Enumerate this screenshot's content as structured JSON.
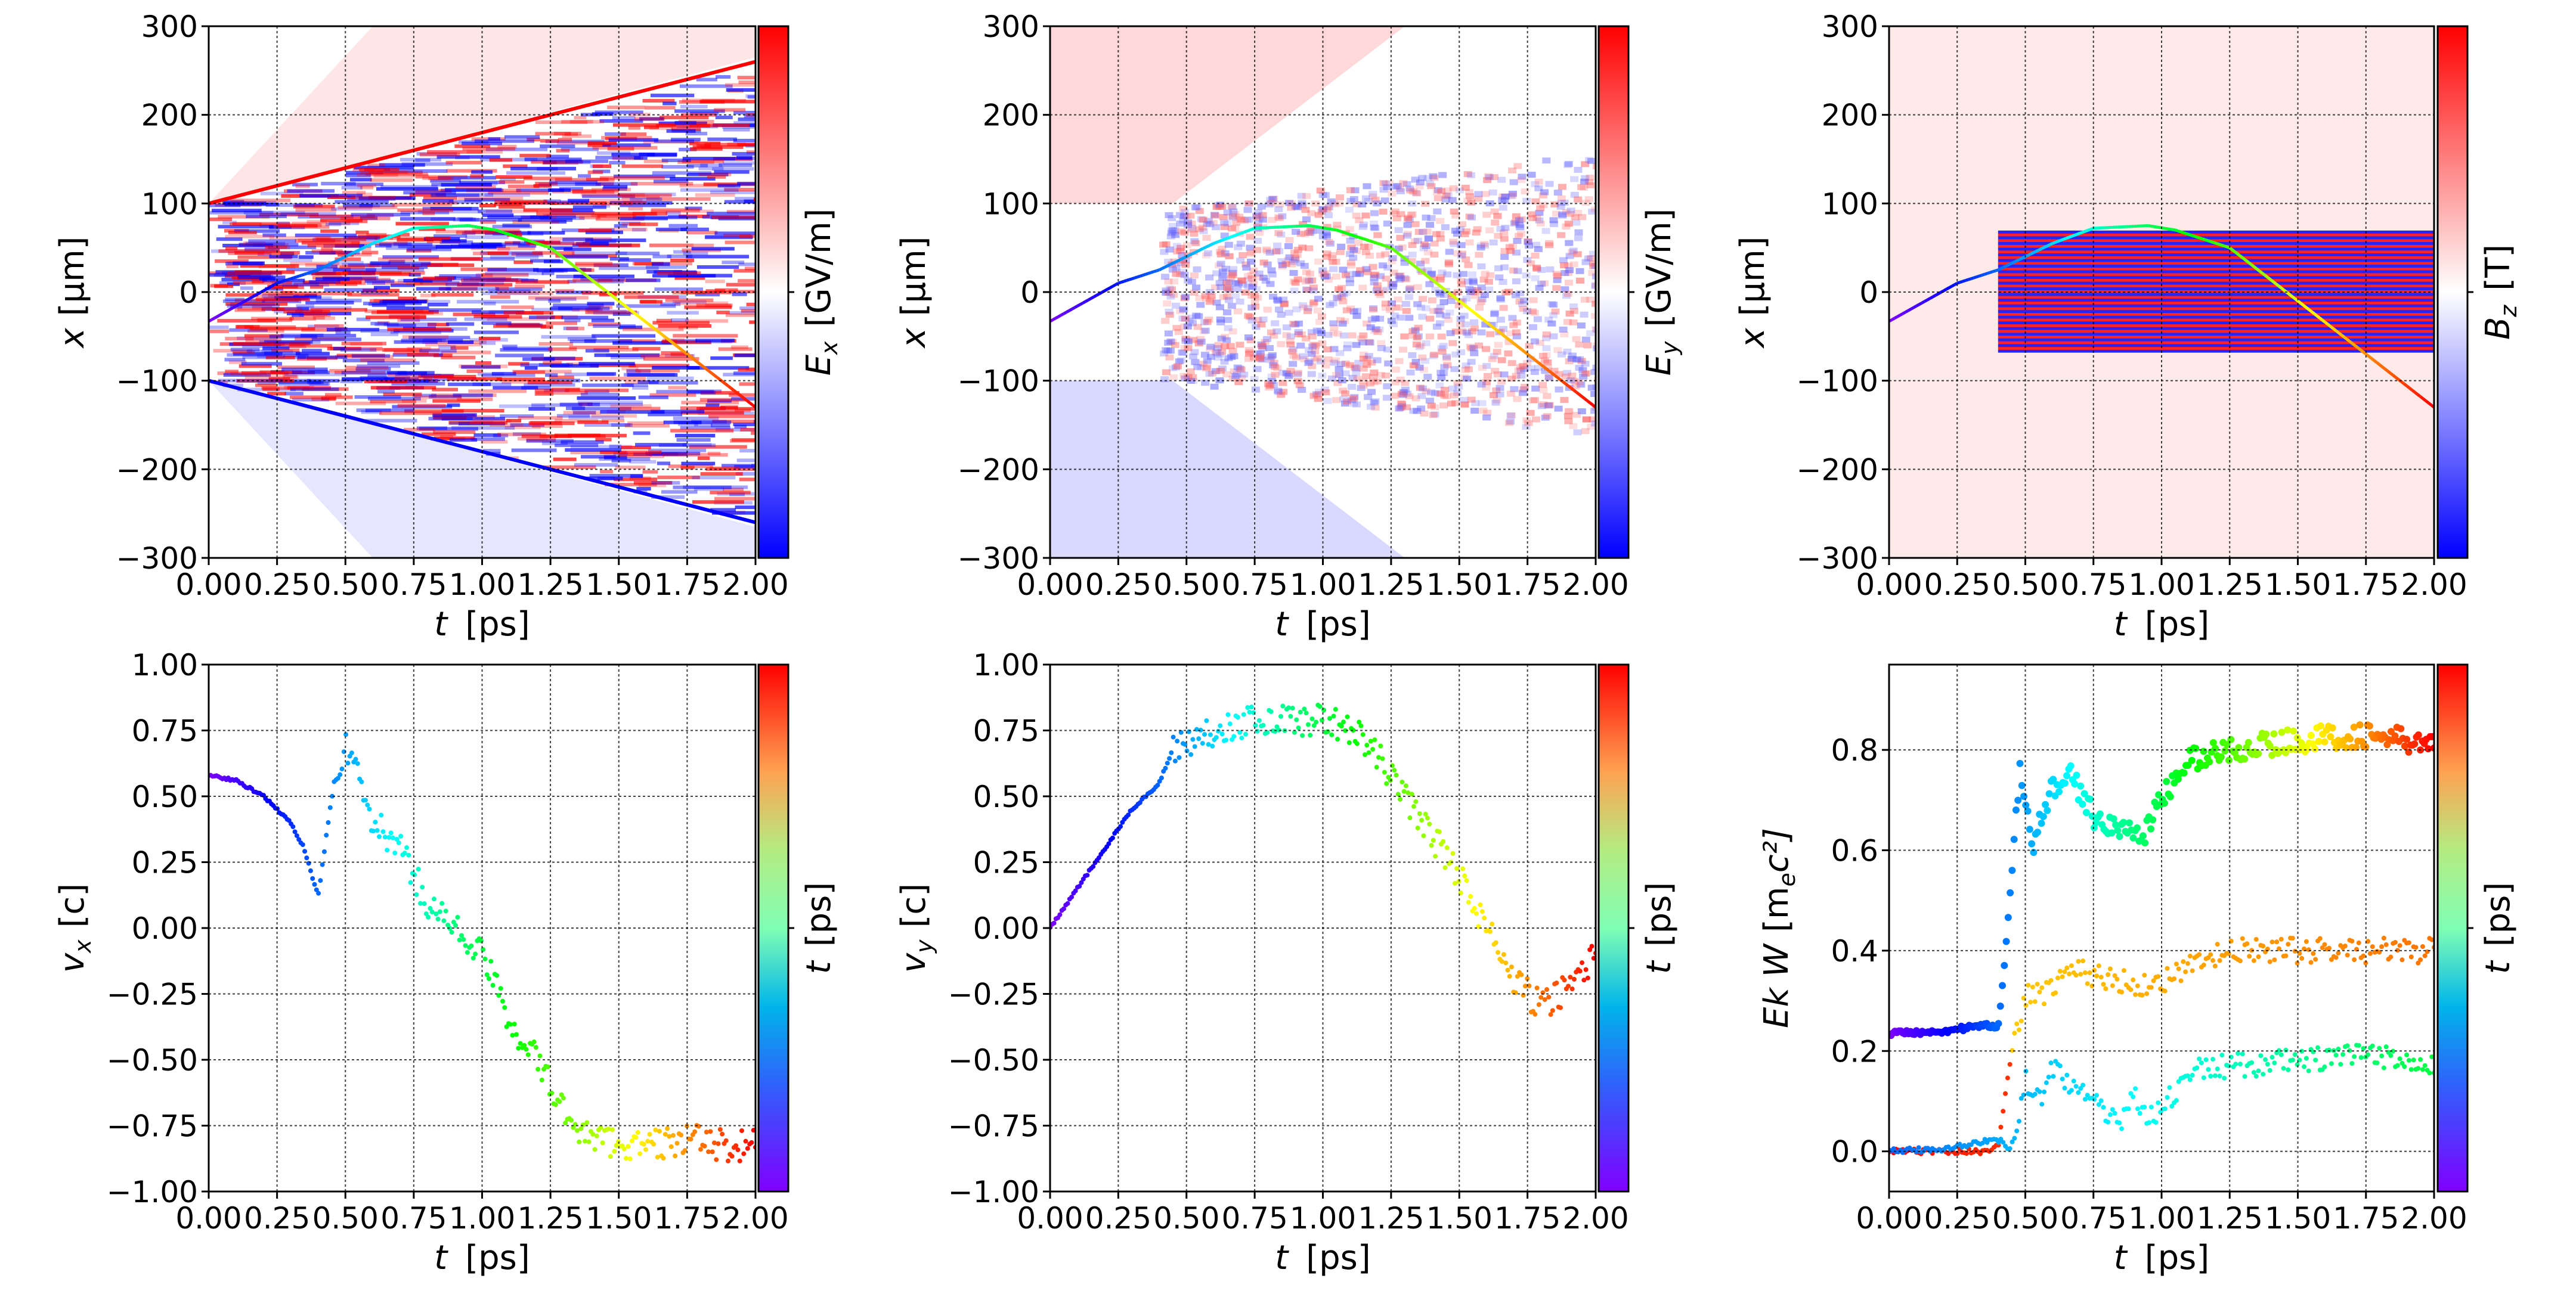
{
  "chart_data": [
    {
      "type": "heatmap",
      "panel": "top-left",
      "xlabel": {
        "var": "t",
        "unit": "[ps]"
      },
      "ylabel": {
        "var": "x",
        "unit": "[μm]"
      },
      "colorbar": {
        "var": "E",
        "sub": "x",
        "unit": "[GV/m]",
        "colormap": "bwr"
      },
      "xlim": [
        0,
        2
      ],
      "ylim": [
        -300,
        300
      ],
      "xticks": [
        "0.00",
        "0.25",
        "0.50",
        "0.75",
        "1.00",
        "1.25",
        "1.50",
        "1.75",
        "2.00"
      ],
      "yticks": [
        "−300",
        "−200",
        "−100",
        "0",
        "100",
        "200",
        "300"
      ],
      "grid": true,
      "trajectory": {
        "t": [
          0,
          0.25,
          0.4,
          0.5,
          0.6,
          0.75,
          0.95,
          1.05,
          1.25,
          1.5,
          1.75,
          2.0
        ],
        "x": [
          -33,
          10,
          25,
          40,
          55,
          72,
          75,
          70,
          50,
          -10,
          -70,
          -130
        ],
        "colormap": "rainbow"
      }
    },
    {
      "type": "heatmap",
      "panel": "top-middle",
      "xlabel": {
        "var": "t",
        "unit": "[ps]"
      },
      "ylabel": {
        "var": "x",
        "unit": "[μm]"
      },
      "colorbar": {
        "var": "E",
        "sub": "y",
        "unit": "[GV/m]",
        "colormap": "bwr"
      },
      "xlim": [
        0,
        2
      ],
      "ylim": [
        -300,
        300
      ],
      "xticks": [
        "0.00",
        "0.25",
        "0.50",
        "0.75",
        "1.00",
        "1.25",
        "1.50",
        "1.75",
        "2.00"
      ],
      "yticks": [
        "−300",
        "−200",
        "−100",
        "0",
        "100",
        "200",
        "300"
      ],
      "grid": true
    },
    {
      "type": "heatmap",
      "panel": "top-right",
      "xlabel": {
        "var": "t",
        "unit": "[ps]"
      },
      "ylabel": {
        "var": "x",
        "unit": "[μm]"
      },
      "colorbar": {
        "var": "B",
        "sub": "z",
        "unit": "[T]",
        "colormap": "bwr"
      },
      "xlim": [
        0,
        2
      ],
      "ylim": [
        -300,
        300
      ],
      "xticks": [
        "0.00",
        "0.25",
        "0.50",
        "0.75",
        "1.00",
        "1.25",
        "1.50",
        "1.75",
        "2.00"
      ],
      "yticks": [
        "−300",
        "−200",
        "−100",
        "0",
        "100",
        "200",
        "300"
      ],
      "grid": true
    },
    {
      "type": "scatter",
      "panel": "bottom-left",
      "xlabel": {
        "var": "t",
        "unit": "[ps]"
      },
      "ylabel": {
        "var": "v",
        "sub": "x",
        "unit": "[c]"
      },
      "colorbar": {
        "var": "t",
        "unit": "[ps]",
        "colormap": "rainbow"
      },
      "xlim": [
        0,
        2
      ],
      "ylim": [
        -1,
        1
      ],
      "xticks": [
        "0.00",
        "0.25",
        "0.50",
        "0.75",
        "1.00",
        "1.25",
        "1.50",
        "1.75",
        "2.00"
      ],
      "yticks": [
        "−1.00",
        "−0.75",
        "−0.50",
        "−0.25",
        "0.00",
        "0.25",
        "0.50",
        "0.75",
        "1.00"
      ],
      "grid": true,
      "series": [
        {
          "t": [
            0,
            0.1,
            0.2,
            0.3,
            0.35,
            0.4,
            0.45,
            0.5,
            0.6,
            0.7,
            0.8,
            0.9,
            1.0,
            1.1,
            1.2,
            1.3,
            1.4,
            1.6,
            1.75,
            1.9,
            2.0
          ],
          "y": [
            0.58,
            0.56,
            0.5,
            0.4,
            0.3,
            0.12,
            0.5,
            0.7,
            0.4,
            0.3,
            0.1,
            0.0,
            -0.1,
            -0.35,
            -0.5,
            -0.7,
            -0.8,
            -0.83,
            -0.8,
            -0.83,
            -0.82
          ]
        }
      ]
    },
    {
      "type": "scatter",
      "panel": "bottom-middle",
      "xlabel": {
        "var": "t",
        "unit": "[ps]"
      },
      "ylabel": {
        "var": "v",
        "sub": "y",
        "unit": "[c]"
      },
      "colorbar": {
        "var": "t",
        "unit": "[ps]",
        "colormap": "rainbow"
      },
      "xlim": [
        0,
        2
      ],
      "ylim": [
        -1,
        1
      ],
      "xticks": [
        "0.00",
        "0.25",
        "0.50",
        "0.75",
        "1.00",
        "1.25",
        "1.50",
        "1.75",
        "2.00"
      ],
      "yticks": [
        "−1.00",
        "−0.75",
        "−0.50",
        "−0.25",
        "0.00",
        "0.25",
        "0.50",
        "0.75",
        "1.00"
      ],
      "grid": true,
      "series": [
        {
          "t": [
            0,
            0.1,
            0.2,
            0.3,
            0.4,
            0.45,
            0.5,
            0.6,
            0.7,
            0.8,
            1.0,
            1.1,
            1.2,
            1.3,
            1.4,
            1.5,
            1.6,
            1.7,
            1.8,
            1.9,
            2.0
          ],
          "y": [
            0,
            0.15,
            0.3,
            0.45,
            0.55,
            0.68,
            0.7,
            0.75,
            0.78,
            0.79,
            0.79,
            0.76,
            0.65,
            0.5,
            0.35,
            0.2,
            0.0,
            -0.2,
            -0.3,
            -0.22,
            -0.1
          ]
        }
      ]
    },
    {
      "type": "scatter",
      "panel": "bottom-right",
      "xlabel": {
        "var": "t",
        "unit": "[ps]"
      },
      "ylabel": {
        "var": "Ek W",
        "unit": "[m",
        "sub": "e",
        "tail": "c²]"
      },
      "colorbar": {
        "var": "t",
        "unit": "[ps]",
        "colormap": "rainbow"
      },
      "xlim": [
        0,
        2
      ],
      "ylim": [
        -0.08,
        0.97
      ],
      "xticks": [
        "0.00",
        "0.25",
        "0.50",
        "0.75",
        "1.00",
        "1.25",
        "1.50",
        "1.75",
        "2.00"
      ],
      "yticks": [
        "0.0",
        "0.2",
        "0.4",
        "0.6",
        "0.8"
      ],
      "grid": true,
      "series": [
        {
          "t": [
            0,
            0.2,
            0.35,
            0.4,
            0.42,
            0.45,
            0.48,
            0.53,
            0.6,
            0.65,
            0.75,
            0.85,
            0.93,
            1.0,
            1.1,
            1.25,
            1.5,
            1.75,
            2.0
          ],
          "y": [
            0.235,
            0.24,
            0.25,
            0.25,
            0.35,
            0.55,
            0.75,
            0.62,
            0.72,
            0.76,
            0.67,
            0.64,
            0.63,
            0.7,
            0.78,
            0.8,
            0.82,
            0.83,
            0.81
          ]
        },
        {
          "t": [
            0,
            0.2,
            0.35,
            0.4,
            0.45,
            0.5,
            0.6,
            0.65,
            0.75,
            0.85,
            0.95,
            1.05,
            1.2,
            1.3,
            1.5,
            1.75,
            2.0
          ],
          "y": [
            0,
            0,
            0,
            0.01,
            0.2,
            0.31,
            0.32,
            0.37,
            0.35,
            0.34,
            0.33,
            0.35,
            0.39,
            0.4,
            0.4,
            0.4,
            0.4
          ]
        },
        {
          "t": [
            0,
            0.2,
            0.35,
            0.42,
            0.45,
            0.5,
            0.55,
            0.6,
            0.7,
            0.75,
            0.8,
            0.85,
            0.9,
            0.95,
            1.0,
            1.1,
            1.25,
            1.5,
            1.75,
            2.0
          ],
          "y": [
            0,
            0.005,
            0.02,
            0.02,
            0,
            0.14,
            0.1,
            0.17,
            0.12,
            0.1,
            0.06,
            0.06,
            0.12,
            0.07,
            0.08,
            0.16,
            0.17,
            0.18,
            0.19,
            0.18
          ]
        }
      ]
    }
  ],
  "colors": {
    "bwr_low": "#0000ff",
    "bwr_mid": "#ffffff",
    "bwr_high": "#ff0000"
  }
}
